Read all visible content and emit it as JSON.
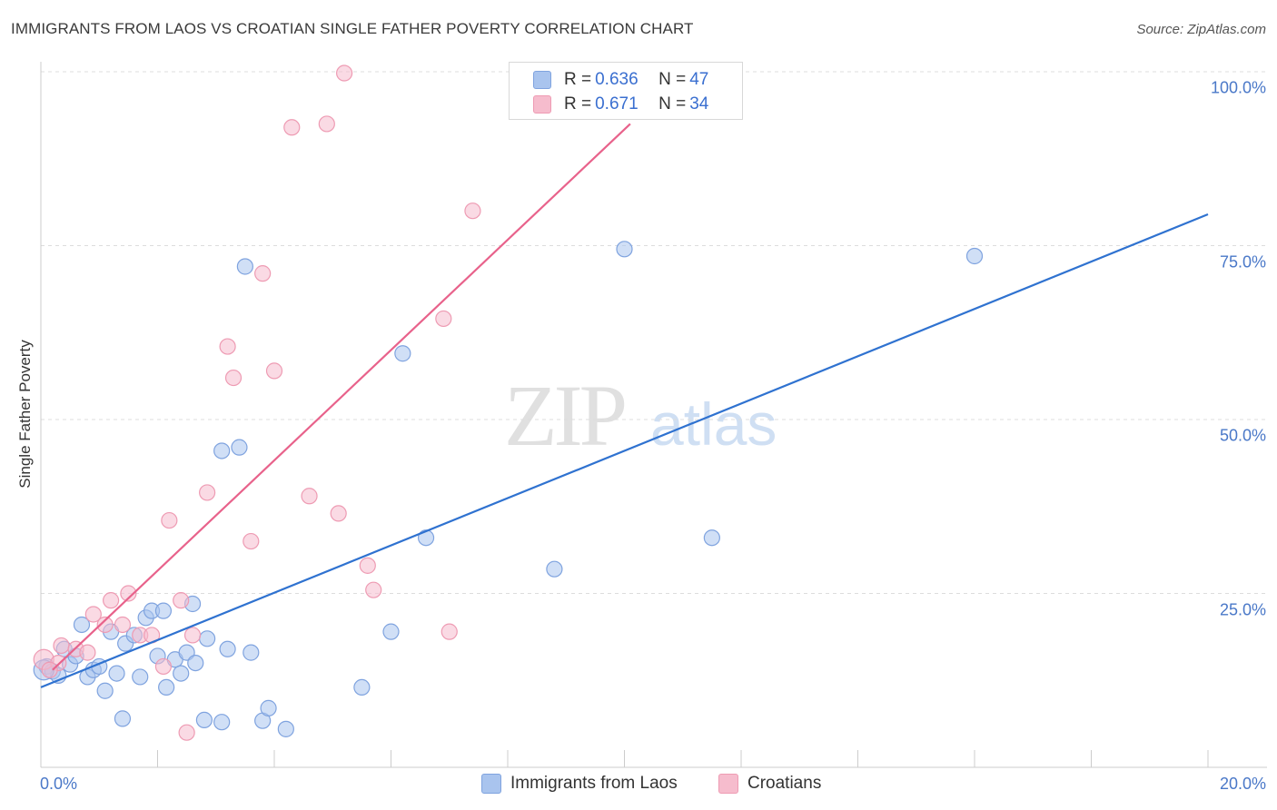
{
  "title": "IMMIGRANTS FROM LAOS VS CROATIAN SINGLE FATHER POVERTY CORRELATION CHART",
  "source": "Source: ZipAtlas.com",
  "watermark": {
    "zip": "ZIP",
    "atlas": "atlas"
  },
  "legend_top": {
    "rows": [
      {
        "r_label": "R = ",
        "r_value": "0.636",
        "n_label": "N = ",
        "n_value": "47"
      },
      {
        "r_label": "R = ",
        "r_value": "0.671",
        "n_label": "N = ",
        "n_value": "34"
      }
    ]
  },
  "chart_data": {
    "type": "scatter",
    "title": "IMMIGRANTS FROM LAOS VS CROATIAN SINGLE FATHER POVERTY CORRELATION CHART",
    "xlabel": "",
    "ylabel": "Single Father Poverty",
    "xlim": [
      0,
      20
    ],
    "ylim": [
      0,
      100
    ],
    "x_tick_labels": [
      "0.0%",
      "20.0%"
    ],
    "y_ticks": [
      25,
      50,
      75,
      100
    ],
    "y_tick_labels": [
      "25.0%",
      "50.0%",
      "75.0%",
      "100.0%"
    ],
    "grid": true,
    "legend_position": "bottom",
    "series": [
      {
        "name": "Immigrants from Laos",
        "color": "#a9c4ee",
        "edge_color": "#7fa3df",
        "line_color": "#2f72d0",
        "trend": {
          "x": [
            0,
            20
          ],
          "y": [
            11.5,
            79.5
          ]
        },
        "points": [
          [
            0.1,
            14.5
          ],
          [
            0.2,
            13.8
          ],
          [
            0.3,
            13.2
          ],
          [
            0.4,
            17.0
          ],
          [
            0.5,
            14.8
          ],
          [
            0.6,
            16.0
          ],
          [
            0.7,
            20.5
          ],
          [
            0.8,
            13.0
          ],
          [
            0.9,
            14.0
          ],
          [
            1.0,
            14.5
          ],
          [
            1.1,
            11.0
          ],
          [
            1.2,
            19.5
          ],
          [
            1.3,
            13.5
          ],
          [
            1.4,
            7.0
          ],
          [
            1.45,
            17.8
          ],
          [
            1.6,
            19.0
          ],
          [
            1.7,
            13.0
          ],
          [
            1.8,
            21.5
          ],
          [
            1.9,
            22.5
          ],
          [
            2.0,
            16.0
          ],
          [
            2.1,
            22.5
          ],
          [
            2.15,
            11.5
          ],
          [
            2.3,
            15.5
          ],
          [
            2.4,
            13.5
          ],
          [
            2.5,
            16.5
          ],
          [
            2.6,
            23.5
          ],
          [
            2.65,
            15.0
          ],
          [
            2.8,
            6.8
          ],
          [
            2.85,
            18.5
          ],
          [
            3.1,
            45.5
          ],
          [
            3.1,
            6.5
          ],
          [
            3.2,
            17.0
          ],
          [
            3.4,
            46.0
          ],
          [
            3.5,
            72.0
          ],
          [
            3.6,
            16.5
          ],
          [
            3.8,
            6.7
          ],
          [
            3.9,
            8.5
          ],
          [
            4.2,
            5.5
          ],
          [
            5.5,
            11.5
          ],
          [
            6.0,
            19.5
          ],
          [
            6.2,
            59.5
          ],
          [
            6.6,
            33.0
          ],
          [
            8.8,
            28.5
          ],
          [
            10.0,
            74.5
          ],
          [
            11.5,
            33.0
          ],
          [
            16.0,
            73.5
          ],
          [
            0.05,
            14.0
          ]
        ]
      },
      {
        "name": "Croatians",
        "color": "#f6bccd",
        "edge_color": "#ee9bb3",
        "line_color": "#e8628b",
        "trend": {
          "x": [
            0.2,
            10.1
          ],
          "y": [
            14.0,
            92.5
          ]
        },
        "points": [
          [
            0.05,
            15.5
          ],
          [
            0.3,
            15.0
          ],
          [
            0.35,
            17.5
          ],
          [
            0.6,
            17.0
          ],
          [
            0.8,
            16.5
          ],
          [
            0.9,
            22.0
          ],
          [
            1.1,
            20.5
          ],
          [
            1.2,
            24.0
          ],
          [
            1.4,
            20.5
          ],
          [
            1.5,
            25.0
          ],
          [
            1.7,
            19.0
          ],
          [
            1.9,
            19.0
          ],
          [
            2.1,
            14.5
          ],
          [
            2.2,
            35.5
          ],
          [
            2.4,
            24.0
          ],
          [
            2.5,
            5.0
          ],
          [
            2.6,
            19.0
          ],
          [
            2.85,
            39.5
          ],
          [
            3.2,
            60.5
          ],
          [
            3.3,
            56.0
          ],
          [
            3.6,
            32.5
          ],
          [
            3.8,
            71.0
          ],
          [
            4.0,
            57.0
          ],
          [
            4.3,
            92.0
          ],
          [
            4.6,
            39.0
          ],
          [
            4.9,
            92.5
          ],
          [
            5.1,
            36.5
          ],
          [
            5.2,
            99.8
          ],
          [
            5.6,
            29.0
          ],
          [
            5.7,
            25.5
          ],
          [
            6.9,
            64.5
          ],
          [
            7.0,
            19.5
          ],
          [
            7.4,
            80.0
          ],
          [
            0.15,
            14.0
          ]
        ]
      }
    ]
  }
}
